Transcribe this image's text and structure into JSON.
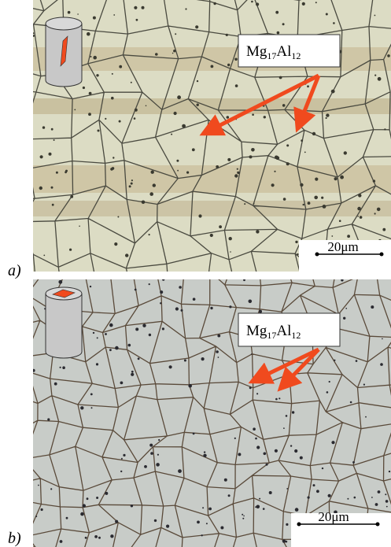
{
  "panels": [
    {
      "label": "a)",
      "annotation": {
        "parts": [
          "Mg",
          "17",
          "Al",
          "12"
        ]
      },
      "scale_bar": "20μm"
    },
    {
      "label": "b)",
      "annotation": {
        "parts": [
          "Mg",
          "17",
          "Al",
          "12"
        ]
      },
      "scale_bar": "20μm"
    }
  ]
}
